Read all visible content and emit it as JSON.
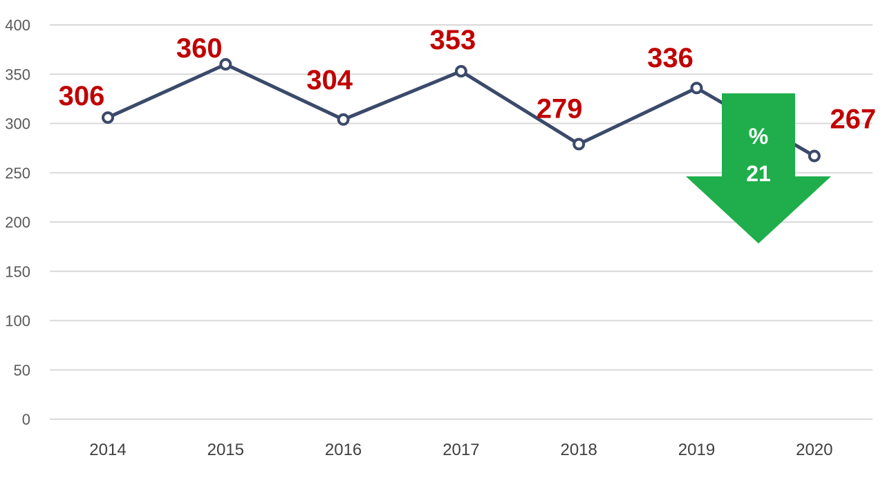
{
  "chart_data": {
    "type": "line",
    "categories": [
      "2014",
      "2015",
      "2016",
      "2017",
      "2018",
      "2019",
      "2020"
    ],
    "values": [
      306,
      360,
      304,
      353,
      279,
      336,
      267
    ],
    "data_labels": [
      "306",
      "360",
      "304",
      "353",
      "279",
      "336",
      "267"
    ],
    "y_ticks": [
      "0",
      "50",
      "100",
      "150",
      "200",
      "250",
      "300",
      "350",
      "400"
    ],
    "ylim": [
      0,
      400
    ],
    "grid": true,
    "legend": "none",
    "annotation": {
      "symbol": "%",
      "value": "21",
      "direction": "down"
    }
  },
  "colors": {
    "line": "#3b4a6b",
    "label": "#c00000",
    "grid": "#d9d9d9",
    "tick": "#595959",
    "xtick": "#404040",
    "arrow": "#1fae4b",
    "arrow_text": "#ffffff"
  }
}
